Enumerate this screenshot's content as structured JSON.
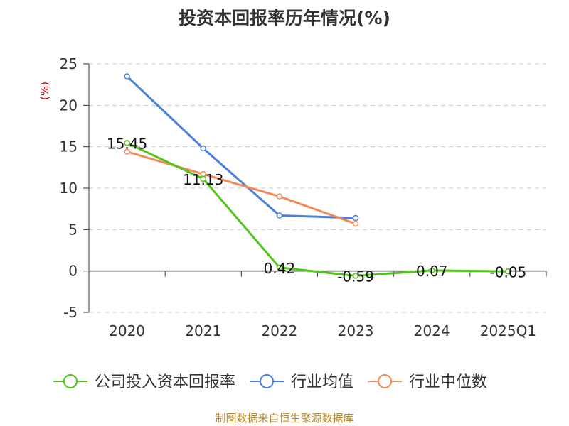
{
  "colors": {
    "company": "#52c41a",
    "industry_avg": "#4a7fdc",
    "industry_median": "#f5895a",
    "source": "#b5882a",
    "ylabel": "#cc0000"
  },
  "chart_data": {
    "type": "line",
    "title": "投资本回报率历年情况(%)",
    "ylabel": "(%)",
    "xlabel": "",
    "categories": [
      "2020",
      "2021",
      "2022",
      "2023",
      "2024",
      "2025Q1"
    ],
    "ylim": [
      -5,
      25
    ],
    "yticks": [
      "25",
      "20",
      "15",
      "10",
      "5",
      "0",
      "-5"
    ],
    "grid": true,
    "legend_position": "bottom",
    "series": [
      {
        "name": "公司投入资本回报率",
        "values": [
          15.45,
          11.13,
          0.42,
          -0.59,
          0.07,
          -0.05
        ],
        "labels": [
          "15.45",
          "11.13",
          "0.42",
          "-0.59",
          "0.07",
          "-0.05"
        ]
      },
      {
        "name": "行业均值",
        "values": [
          23.5,
          14.8,
          6.7,
          6.4,
          null,
          null
        ]
      },
      {
        "name": "行业中位数",
        "values": [
          14.4,
          11.7,
          9.0,
          5.7,
          null,
          null
        ]
      }
    ]
  },
  "source_note": "制图数据来自恒生聚源数据库"
}
